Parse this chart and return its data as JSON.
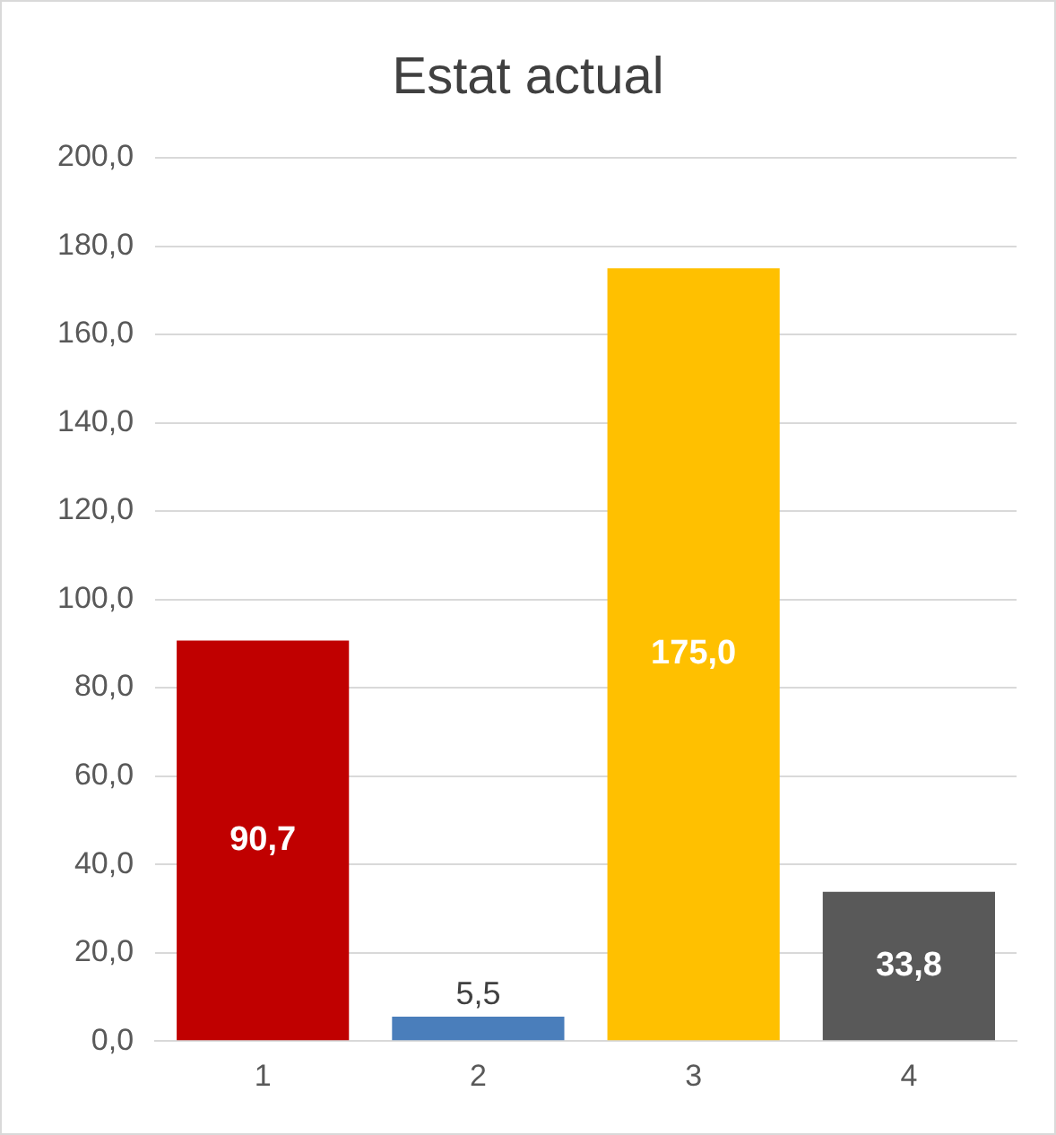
{
  "chart_data": {
    "type": "bar",
    "title": "Estat actual",
    "categories": [
      "1",
      "2",
      "3",
      "4"
    ],
    "values": [
      90.7,
      5.5,
      175.0,
      33.8
    ],
    "colors": [
      "#c00000",
      "#4a7ebb",
      "#ffc000",
      "#595959"
    ],
    "value_labels": [
      "90,7",
      "5,5",
      "175,0",
      "33,8"
    ],
    "ylim": [
      0,
      200
    ],
    "yticks": [
      {
        "value": 0,
        "label": "0,0"
      },
      {
        "value": 20,
        "label": "20,0"
      },
      {
        "value": 40,
        "label": "40,0"
      },
      {
        "value": 60,
        "label": "60,0"
      },
      {
        "value": 80,
        "label": "80,0"
      },
      {
        "value": 100,
        "label": "100,0"
      },
      {
        "value": 120,
        "label": "120,0"
      },
      {
        "value": 140,
        "label": "140,0"
      },
      {
        "value": 160,
        "label": "160,0"
      },
      {
        "value": 180,
        "label": "180,0"
      },
      {
        "value": 200,
        "label": "200,0"
      }
    ],
    "grid": "y",
    "legend": false
  }
}
